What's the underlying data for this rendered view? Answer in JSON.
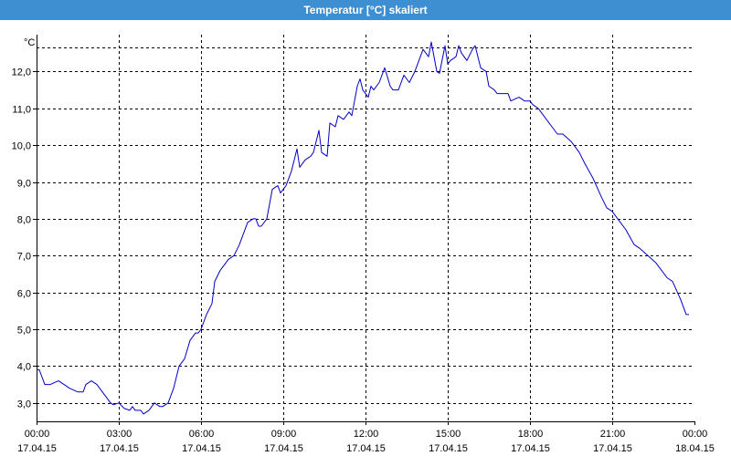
{
  "window": {
    "title": "Temperatur [°C] skaliert"
  },
  "colors": {
    "titlebar": "#3d8fd1",
    "line": "#0000c8",
    "grid": "#000000"
  },
  "chart_data": {
    "type": "line",
    "title": "Temperatur [°C] skaliert",
    "ylabel": "°C",
    "xlabel": "",
    "grid": true,
    "ylim": [
      2.5,
      13.0
    ],
    "yticks": [
      3.0,
      4.0,
      5.0,
      6.0,
      7.0,
      8.0,
      9.0,
      10.0,
      11.0,
      12.0
    ],
    "ytick_labels": [
      "3,0",
      "4,0",
      "5,0",
      "6,0",
      "7,0",
      "8,0",
      "9,0",
      "10,0",
      "11,0",
      "12,0"
    ],
    "xlim_hours": [
      0,
      24
    ],
    "xticks": [
      {
        "h": 0,
        "time": "00:00",
        "date": "17.04.15"
      },
      {
        "h": 3,
        "time": "03:00",
        "date": "17.04.15"
      },
      {
        "h": 6,
        "time": "06:00",
        "date": "17.04.15"
      },
      {
        "h": 9,
        "time": "09:00",
        "date": "17.04.15"
      },
      {
        "h": 12,
        "time": "12:00",
        "date": "17.04.15"
      },
      {
        "h": 15,
        "time": "15:00",
        "date": "17.04.15"
      },
      {
        "h": 18,
        "time": "18:00",
        "date": "17.04.15"
      },
      {
        "h": 21,
        "time": "21:00",
        "date": "17.04.15"
      },
      {
        "h": 24,
        "time": "00:00",
        "date": "18.04.15"
      }
    ],
    "series": [
      {
        "x": [
          0.0,
          0.1,
          0.3,
          0.5,
          0.8,
          1.0,
          1.2,
          1.5,
          1.7,
          1.8,
          2.0,
          2.2,
          2.4,
          2.5,
          2.7,
          2.8,
          3.0,
          3.2,
          3.4,
          3.5,
          3.6,
          3.8,
          3.9,
          4.0,
          4.1,
          4.3,
          4.5,
          4.6,
          4.8,
          5.0,
          5.2,
          5.4,
          5.6,
          5.8,
          5.9,
          6.0,
          6.2,
          6.4,
          6.5,
          6.7,
          6.9,
          7.0,
          7.2,
          7.4,
          7.5,
          7.7,
          7.9,
          8.0,
          8.1,
          8.2,
          8.4,
          8.6,
          8.8,
          8.9,
          9.1,
          9.3,
          9.5,
          9.6,
          9.8,
          10.0,
          10.1,
          10.3,
          10.4,
          10.6,
          10.7,
          10.9,
          11.0,
          11.2,
          11.4,
          11.5,
          11.7,
          11.8,
          11.9,
          12.1,
          12.2,
          12.3,
          12.5,
          12.7,
          12.9,
          13.0,
          13.2,
          13.4,
          13.5,
          13.6,
          13.8,
          13.9,
          14.1,
          14.3,
          14.4,
          14.6,
          14.7,
          14.9,
          15.0,
          15.1,
          15.3,
          15.4,
          15.5,
          15.7,
          15.9,
          16.0,
          16.2,
          16.4,
          16.5,
          16.7,
          16.8,
          17.0,
          17.2,
          17.3,
          17.6,
          17.8,
          18.0,
          18.1,
          18.3,
          18.6,
          18.9,
          19.0,
          19.2,
          19.5,
          19.8,
          20.0,
          20.3,
          20.6,
          20.8,
          21.0,
          21.2,
          21.5,
          21.8,
          22.0,
          22.3,
          22.6,
          22.8,
          23.0,
          23.2,
          23.5,
          23.7,
          23.8
        ],
        "y": [
          3.9,
          3.9,
          3.5,
          3.5,
          3.6,
          3.5,
          3.4,
          3.3,
          3.3,
          3.5,
          3.6,
          3.5,
          3.3,
          3.2,
          3.0,
          2.95,
          3.0,
          2.85,
          2.8,
          2.9,
          2.8,
          2.8,
          2.7,
          2.75,
          2.8,
          3.0,
          2.9,
          2.9,
          3.0,
          3.4,
          4.0,
          4.2,
          4.7,
          4.9,
          4.9,
          5.0,
          5.4,
          5.7,
          6.3,
          6.6,
          6.8,
          6.9,
          7.0,
          7.3,
          7.5,
          7.9,
          8.0,
          8.0,
          7.8,
          7.8,
          8.0,
          8.8,
          8.9,
          8.7,
          8.9,
          9.3,
          9.9,
          9.4,
          9.6,
          9.7,
          9.8,
          10.4,
          9.8,
          9.7,
          10.6,
          10.5,
          10.8,
          10.7,
          10.9,
          10.8,
          11.6,
          11.8,
          11.5,
          11.3,
          11.6,
          11.5,
          11.7,
          12.1,
          11.6,
          11.5,
          11.5,
          11.9,
          11.8,
          11.7,
          12.0,
          12.2,
          12.6,
          12.4,
          12.8,
          12.0,
          11.95,
          12.7,
          12.2,
          12.3,
          12.4,
          12.7,
          12.5,
          12.3,
          12.6,
          12.7,
          12.1,
          12.0,
          11.6,
          11.5,
          11.4,
          11.4,
          11.4,
          11.2,
          11.3,
          11.2,
          11.2,
          11.1,
          11.0,
          10.7,
          10.4,
          10.3,
          10.3,
          10.1,
          9.8,
          9.5,
          9.1,
          8.6,
          8.3,
          8.2,
          8.0,
          7.7,
          7.3,
          7.2,
          7.0,
          6.8,
          6.6,
          6.4,
          6.3,
          5.8,
          5.4,
          5.4
        ]
      }
    ]
  }
}
